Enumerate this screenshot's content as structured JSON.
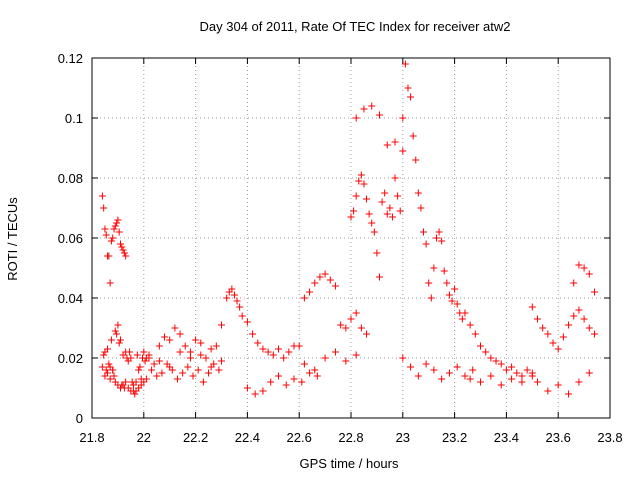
{
  "chart_data": {
    "type": "scatter",
    "title": "Day 304 of 2011, Rate Of TEC Index for receiver atw2",
    "xlabel": "GPS time / hours",
    "ylabel": "ROTI / TECUs",
    "xlim": [
      21.8,
      23.8
    ],
    "ylim": [
      0,
      0.12
    ],
    "xticks": [
      21.8,
      22,
      22.2,
      22.4,
      22.6,
      22.8,
      23,
      23.2,
      23.4,
      23.6,
      23.8
    ],
    "xtick_labels": [
      "21.8",
      "22",
      "22.2",
      "22.4",
      "22.6",
      "22.8",
      "23",
      "23.2",
      "23.4",
      "23.6",
      "23.8"
    ],
    "yticks": [
      0,
      0.02,
      0.04,
      0.06,
      0.08,
      0.1,
      0.12
    ],
    "ytick_labels": [
      "0",
      "0.02",
      "0.04",
      "0.06",
      "0.08",
      "0.1",
      "0.12"
    ],
    "grid": true,
    "marker": "+",
    "color": "#ff0000",
    "series": [
      {
        "name": "ROTI",
        "x": [
          21.84,
          21.845,
          21.85,
          21.855,
          21.86,
          21.865,
          21.87,
          21.875,
          21.88,
          21.885,
          21.89,
          21.895,
          21.9,
          21.905,
          21.91,
          21.915,
          21.92,
          21.925,
          21.93,
          21.84,
          21.845,
          21.85,
          21.855,
          21.86,
          21.865,
          21.87,
          21.875,
          21.88,
          21.885,
          21.89,
          21.895,
          21.9,
          21.905,
          21.91,
          21.915,
          21.92,
          21.925,
          21.93,
          21.935,
          21.94,
          21.945,
          21.95,
          21.955,
          21.96,
          21.965,
          21.97,
          21.975,
          21.98,
          21.985,
          21.99,
          21.995,
          22.0,
          22.005,
          22.01,
          21.85,
          21.86,
          21.87,
          21.88,
          21.89,
          21.9,
          21.91,
          21.92,
          21.93,
          21.94,
          21.95,
          21.96,
          21.97,
          21.98,
          21.99,
          22.0,
          22.01,
          22.02,
          22.04,
          22.06,
          22.08,
          22.1,
          22.12,
          22.14,
          22.16,
          22.18,
          22.2,
          22.22,
          22.24,
          22.26,
          22.28,
          22.3,
          22.03,
          22.05,
          22.07,
          22.09,
          22.11,
          22.13,
          22.15,
          22.17,
          22.19,
          22.21,
          22.23,
          22.25,
          22.27,
          22.29,
          22.02,
          22.06,
          22.1,
          22.14,
          22.18,
          22.22,
          22.26,
          22.3,
          22.32,
          22.33,
          22.34,
          22.35,
          22.36,
          22.37,
          22.38,
          22.4,
          22.42,
          22.44,
          22.46,
          22.48,
          22.5,
          22.52,
          22.54,
          22.56,
          22.58,
          22.6,
          22.4,
          22.43,
          22.46,
          22.49,
          22.52,
          22.55,
          22.58,
          22.61,
          22.64,
          22.67,
          22.62,
          22.64,
          22.66,
          22.68,
          22.7,
          22.72,
          22.74,
          22.62,
          22.66,
          22.7,
          22.74,
          22.78,
          22.82,
          22.76,
          22.78,
          22.8,
          22.82,
          22.84,
          22.86,
          22.8,
          22.81,
          22.82,
          22.83,
          22.84,
          22.85,
          22.86,
          22.87,
          22.88,
          22.89,
          22.9,
          22.91,
          22.92,
          22.93,
          22.94,
          22.95,
          22.96,
          22.97,
          22.98,
          22.99,
          22.82,
          22.85,
          22.88,
          22.91,
          22.94,
          22.97,
          23.0,
          23.0,
          23.01,
          23.02,
          23.03,
          23.04,
          23.05,
          23.06,
          23.07,
          23.08,
          23.09,
          23.1,
          23.11,
          23.12,
          23.13,
          23.14,
          23.15,
          23.16,
          23.17,
          23.18,
          23.19,
          23.2,
          23.21,
          23.22,
          23.23,
          23.0,
          23.03,
          23.06,
          23.09,
          23.12,
          23.15,
          23.18,
          23.21,
          23.24,
          23.27,
          23.24,
          23.26,
          23.28,
          23.3,
          23.32,
          23.34,
          23.36,
          23.38,
          23.4,
          23.42,
          23.44,
          23.46,
          23.48,
          23.5,
          23.26,
          23.3,
          23.34,
          23.38,
          23.42,
          23.46,
          23.5,
          23.5,
          23.52,
          23.54,
          23.56,
          23.58,
          23.6,
          23.62,
          23.64,
          23.66,
          23.68,
          23.7,
          23.72,
          23.74,
          23.52,
          23.56,
          23.6,
          23.64,
          23.68,
          23.72,
          23.66,
          23.68,
          23.7,
          23.72,
          23.74
        ],
        "y": [
          0.074,
          0.07,
          0.063,
          0.061,
          0.054,
          0.054,
          0.045,
          0.059,
          0.06,
          0.063,
          0.064,
          0.065,
          0.066,
          0.062,
          0.058,
          0.057,
          0.056,
          0.055,
          0.054,
          0.017,
          0.021,
          0.022,
          0.016,
          0.023,
          0.018,
          0.017,
          0.026,
          0.016,
          0.014,
          0.029,
          0.028,
          0.031,
          0.025,
          0.026,
          0.011,
          0.021,
          0.01,
          0.022,
          0.02,
          0.019,
          0.022,
          0.02,
          0.012,
          0.009,
          0.008,
          0.009,
          0.021,
          0.016,
          0.017,
          0.013,
          0.02,
          0.022,
          0.019,
          0.02,
          0.014,
          0.015,
          0.013,
          0.016,
          0.012,
          0.011,
          0.01,
          0.011,
          0.012,
          0.01,
          0.009,
          0.011,
          0.012,
          0.01,
          0.011,
          0.012,
          0.013,
          0.02,
          0.018,
          0.024,
          0.027,
          0.026,
          0.03,
          0.028,
          0.024,
          0.022,
          0.026,
          0.025,
          0.02,
          0.023,
          0.024,
          0.031,
          0.016,
          0.014,
          0.015,
          0.018,
          0.016,
          0.013,
          0.015,
          0.017,
          0.014,
          0.016,
          0.012,
          0.015,
          0.018,
          0.016,
          0.021,
          0.019,
          0.017,
          0.022,
          0.02,
          0.021,
          0.017,
          0.019,
          0.04,
          0.042,
          0.043,
          0.041,
          0.039,
          0.037,
          0.034,
          0.032,
          0.028,
          0.025,
          0.023,
          0.022,
          0.021,
          0.023,
          0.02,
          0.022,
          0.024,
          0.024,
          0.01,
          0.008,
          0.009,
          0.012,
          0.014,
          0.011,
          0.013,
          0.012,
          0.015,
          0.014,
          0.04,
          0.042,
          0.045,
          0.047,
          0.048,
          0.046,
          0.044,
          0.018,
          0.016,
          0.02,
          0.022,
          0.019,
          0.021,
          0.031,
          0.03,
          0.033,
          0.035,
          0.03,
          0.028,
          0.067,
          0.069,
          0.074,
          0.079,
          0.081,
          0.078,
          0.073,
          0.068,
          0.065,
          0.062,
          0.055,
          0.047,
          0.072,
          0.075,
          0.068,
          0.07,
          0.067,
          0.08,
          0.074,
          0.069,
          0.1,
          0.103,
          0.104,
          0.101,
          0.091,
          0.092,
          0.089,
          0.1,
          0.118,
          0.11,
          0.107,
          0.094,
          0.086,
          0.075,
          0.07,
          0.062,
          0.058,
          0.045,
          0.04,
          0.05,
          0.06,
          0.062,
          0.059,
          0.049,
          0.045,
          0.041,
          0.039,
          0.043,
          0.038,
          0.035,
          0.033,
          0.02,
          0.017,
          0.014,
          0.018,
          0.016,
          0.013,
          0.015,
          0.017,
          0.014,
          0.016,
          0.035,
          0.031,
          0.028,
          0.024,
          0.022,
          0.02,
          0.019,
          0.018,
          0.016,
          0.017,
          0.015,
          0.014,
          0.016,
          0.015,
          0.013,
          0.012,
          0.014,
          0.011,
          0.013,
          0.012,
          0.014,
          0.037,
          0.033,
          0.03,
          0.028,
          0.025,
          0.023,
          0.027,
          0.031,
          0.034,
          0.036,
          0.033,
          0.03,
          0.028,
          0.012,
          0.009,
          0.011,
          0.008,
          0.012,
          0.015,
          0.045,
          0.051,
          0.05,
          0.048,
          0.042
        ]
      }
    ]
  }
}
